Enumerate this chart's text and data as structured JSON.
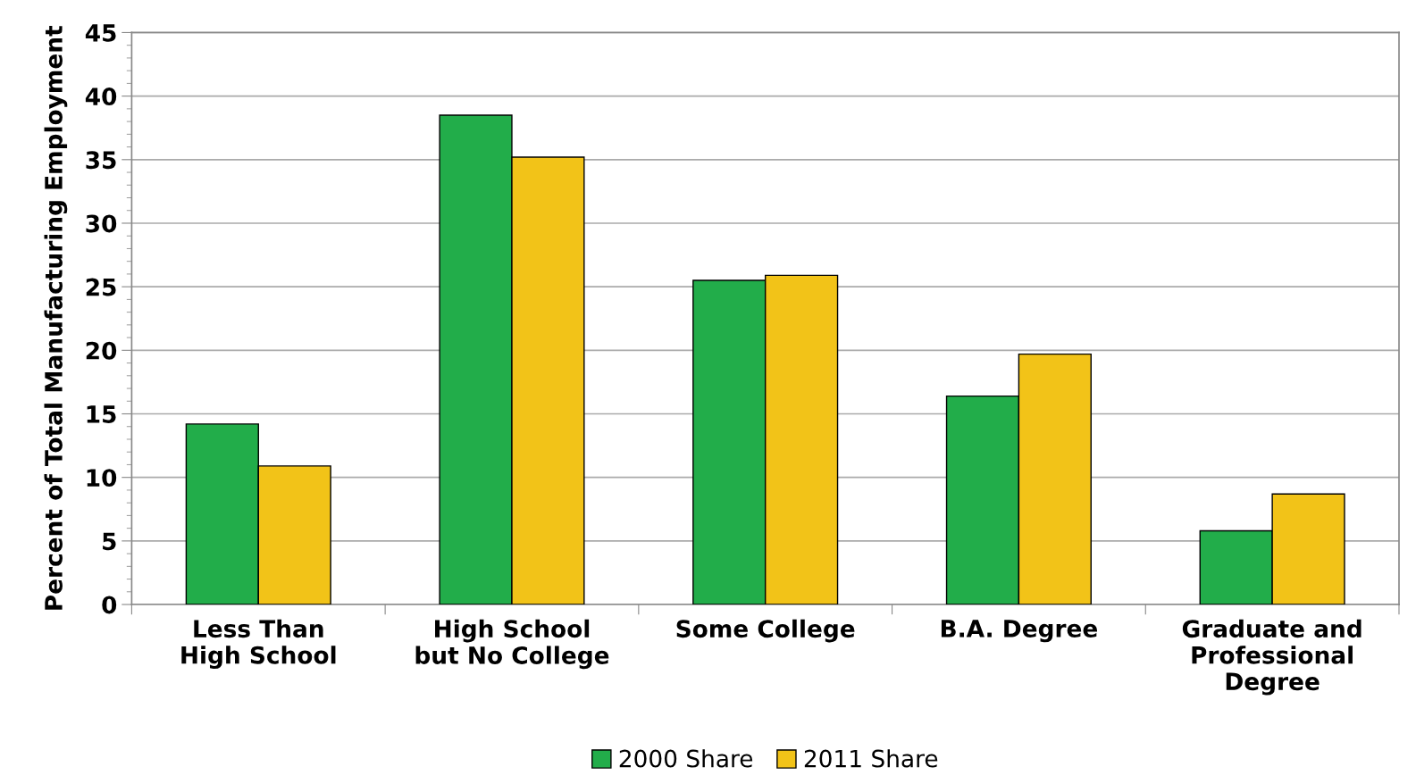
{
  "chart_data": {
    "type": "bar",
    "ylabel": "Percent of Total Manufacturing Employment",
    "categories": [
      "Less Than\nHigh School",
      "High School\nbut No College",
      "Some College",
      "B.A. Degree",
      "Graduate and\nProfessional\nDegree"
    ],
    "series": [
      {
        "name": "2000 Share",
        "color": "#22ad4a",
        "values": [
          14.2,
          38.5,
          25.5,
          16.4,
          5.8
        ]
      },
      {
        "name": "2011 Share",
        "color": "#f2c318",
        "values": [
          10.9,
          35.2,
          25.9,
          19.7,
          8.7
        ]
      }
    ],
    "ylim": [
      0,
      45
    ],
    "yticks": [
      0,
      5,
      10,
      15,
      20,
      25,
      30,
      35,
      40,
      45
    ],
    "grid": "y",
    "legend": "bottom"
  }
}
